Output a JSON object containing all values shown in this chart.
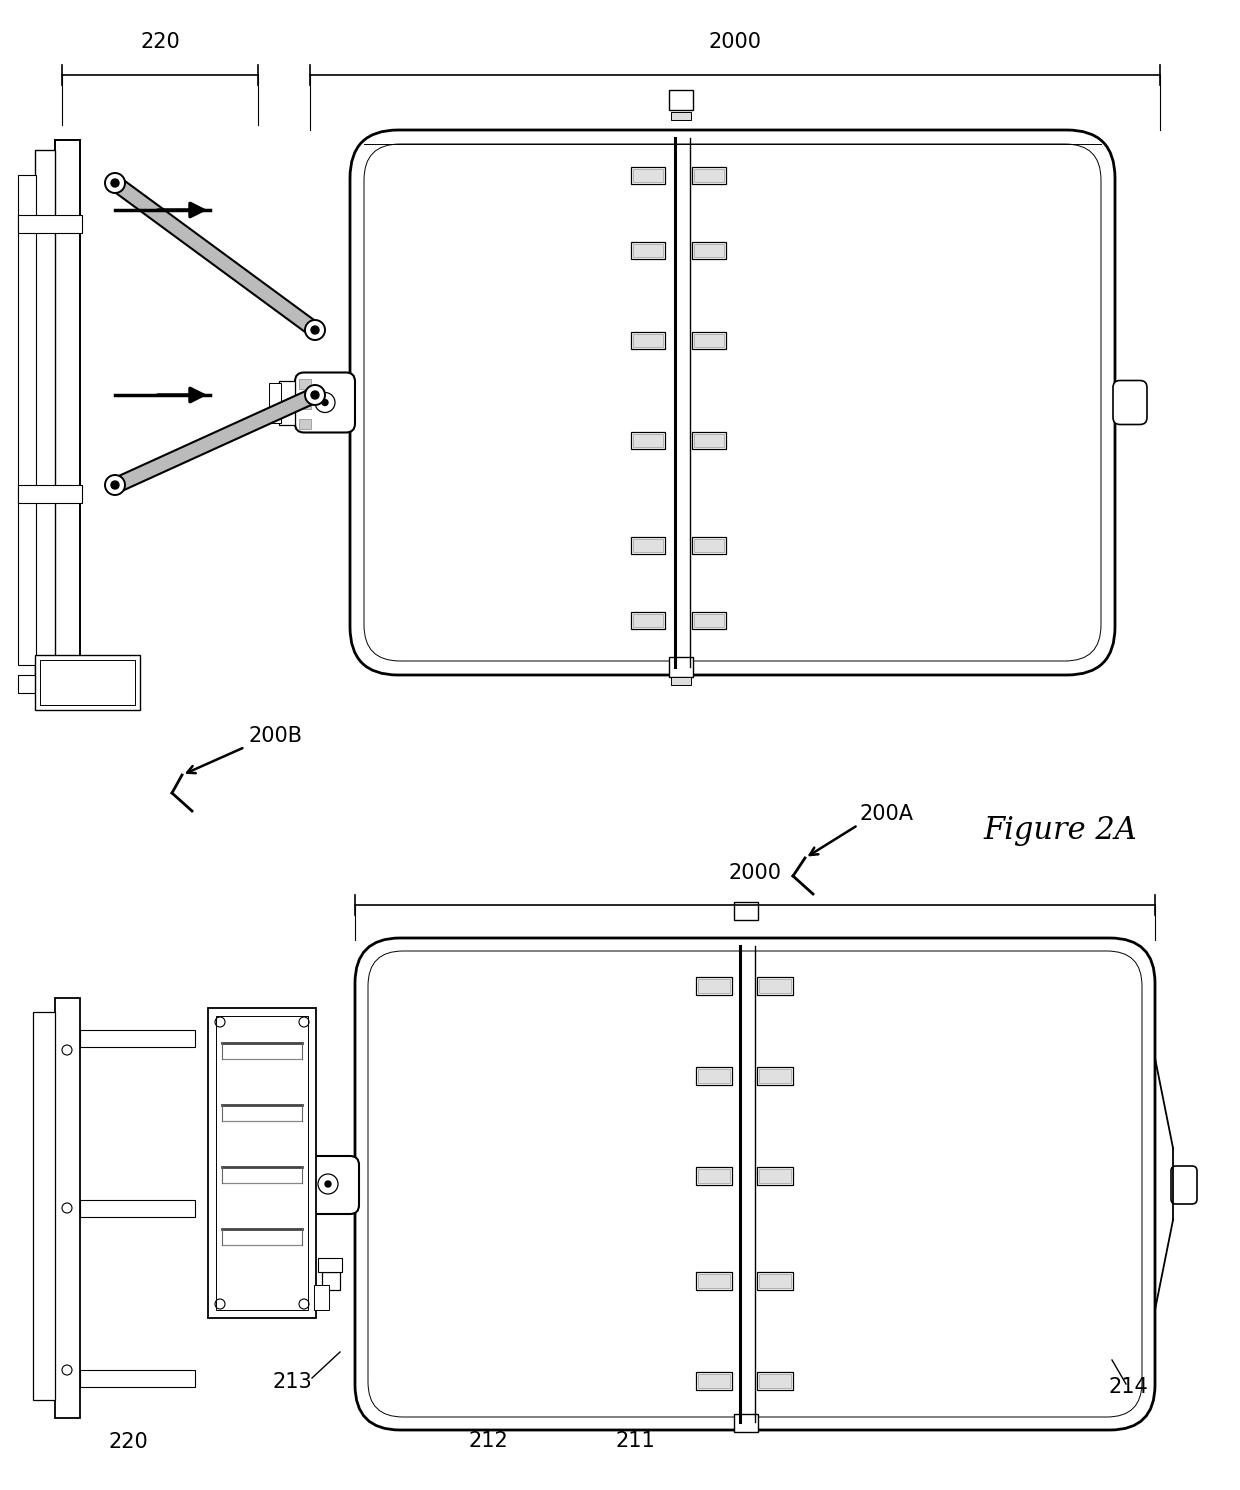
{
  "bg_color": "#ffffff",
  "line_color": "#000000",
  "fig_label": "Figure 2A",
  "labels": {
    "220_top": "220",
    "2000_top": "2000",
    "200B": "200B",
    "200A": "200A",
    "220_bot": "220",
    "2000_bot": "2000",
    "211": "211",
    "212": "212",
    "213": "213",
    "214": "214"
  }
}
